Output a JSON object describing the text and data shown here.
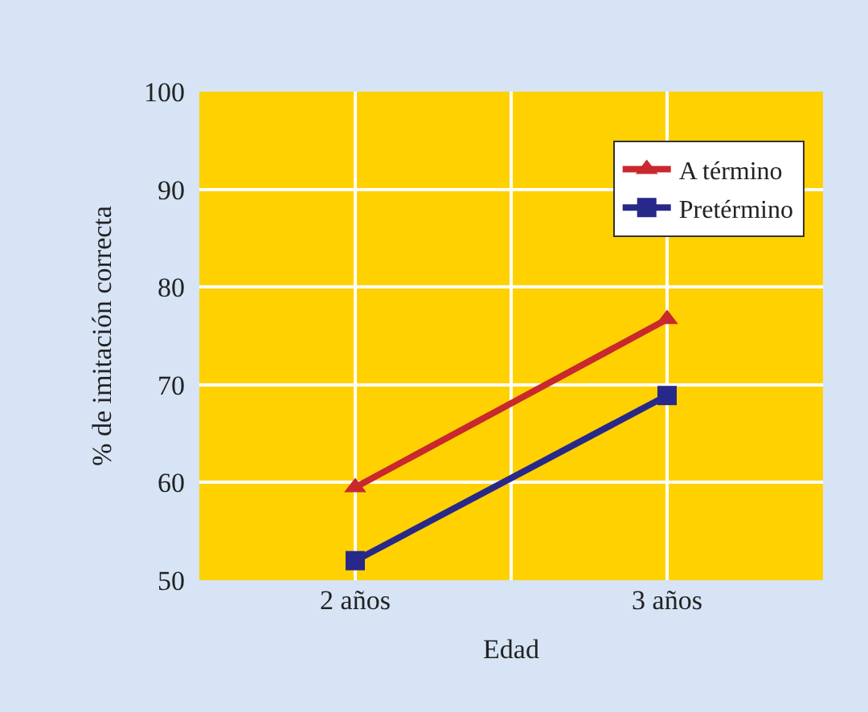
{
  "chart_data": {
    "type": "line",
    "xlabel": "Edad",
    "ylabel": "% de imitación correcta",
    "categories": [
      "2 años",
      "3 años"
    ],
    "series": [
      {
        "name": "A término",
        "color": "#c8282e",
        "marker": "triangle",
        "values": [
          59.5,
          76.7
        ]
      },
      {
        "name": "Pretérmino",
        "color": "#28288a",
        "marker": "square",
        "values": [
          52,
          68.9
        ]
      }
    ],
    "ylim": [
      50,
      100
    ],
    "yticks": [
      50,
      60,
      70,
      80,
      90,
      100
    ],
    "grid": true,
    "legend": "top right"
  }
}
